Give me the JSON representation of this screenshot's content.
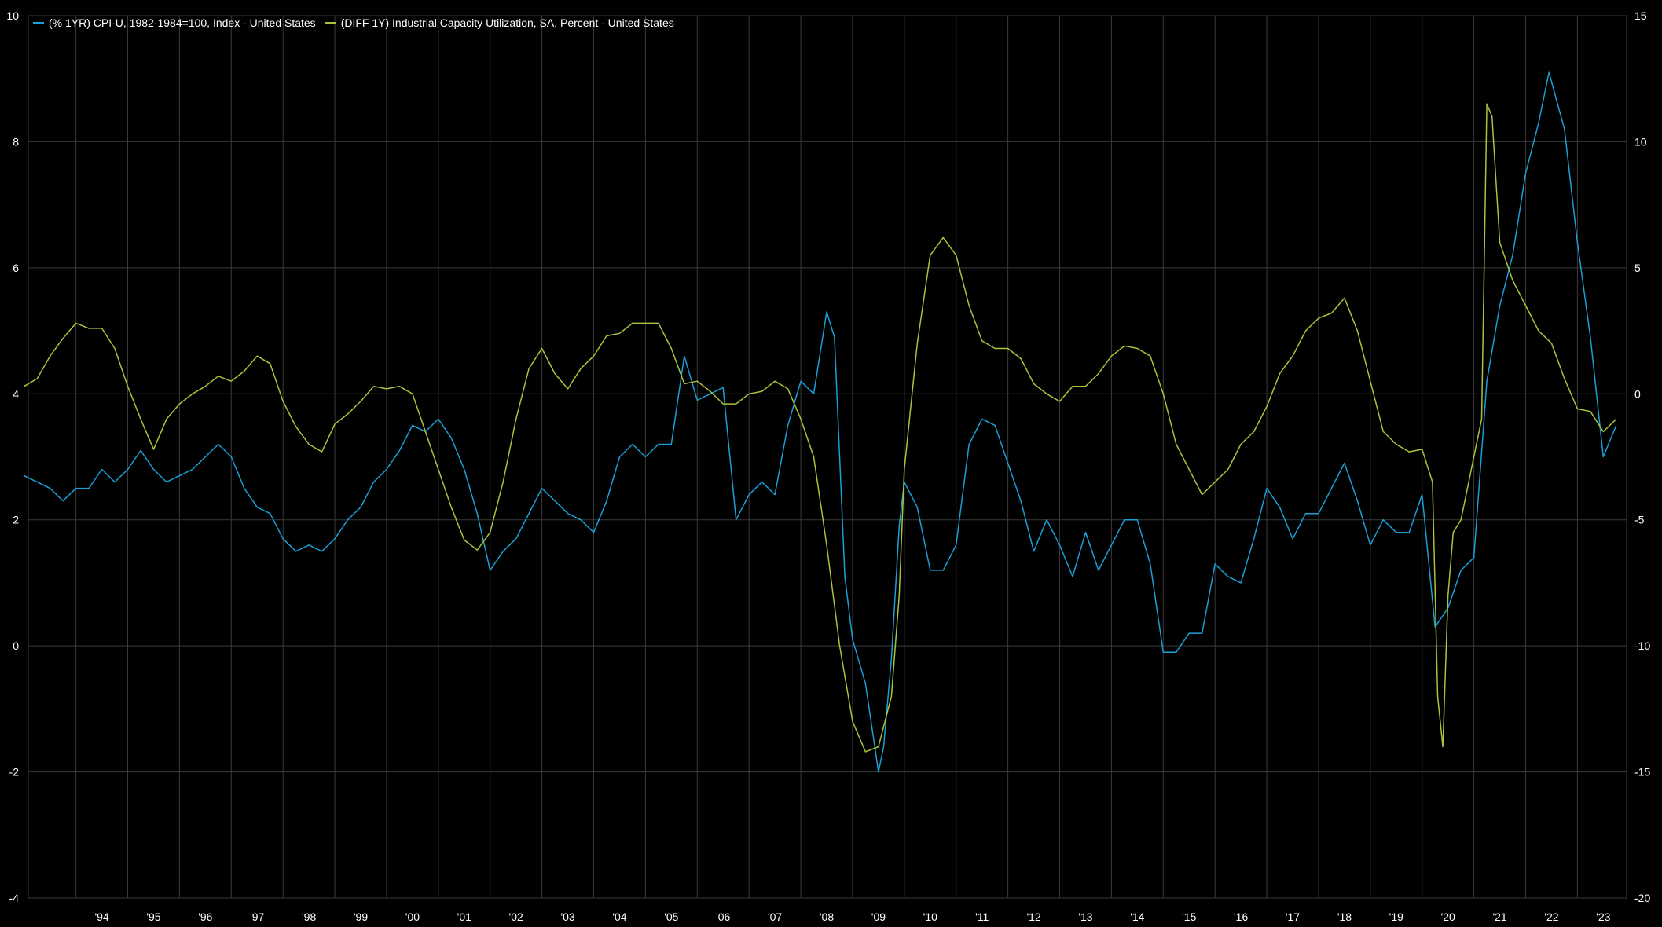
{
  "chart_data": {
    "type": "line",
    "title": "",
    "xlabel": "",
    "ylabel": "",
    "x_range": [
      1993.08,
      2023.95
    ],
    "y_left_range": [
      -4,
      10
    ],
    "y_right_range": [
      -20,
      15
    ],
    "grid": true,
    "legend_position": "top-left",
    "background": "#000000",
    "grid_color": "#3a3a3a",
    "x_ticks": [
      {
        "label": "'94",
        "value": 1994.5
      },
      {
        "label": "'95",
        "value": 1995.5
      },
      {
        "label": "'96",
        "value": 1996.5
      },
      {
        "label": "'97",
        "value": 1997.5
      },
      {
        "label": "'98",
        "value": 1998.5
      },
      {
        "label": "'99",
        "value": 1999.5
      },
      {
        "label": "'00",
        "value": 2000.5
      },
      {
        "label": "'01",
        "value": 2001.5
      },
      {
        "label": "'02",
        "value": 2002.5
      },
      {
        "label": "'03",
        "value": 2003.5
      },
      {
        "label": "'04",
        "value": 2004.5
      },
      {
        "label": "'05",
        "value": 2005.5
      },
      {
        "label": "'06",
        "value": 2006.5
      },
      {
        "label": "'07",
        "value": 2007.5
      },
      {
        "label": "'08",
        "value": 2008.5
      },
      {
        "label": "'09",
        "value": 2009.5
      },
      {
        "label": "'10",
        "value": 2010.5
      },
      {
        "label": "'11",
        "value": 2011.5
      },
      {
        "label": "'12",
        "value": 2012.5
      },
      {
        "label": "'13",
        "value": 2013.5
      },
      {
        "label": "'14",
        "value": 2014.5
      },
      {
        "label": "'15",
        "value": 2015.5
      },
      {
        "label": "'16",
        "value": 2016.5
      },
      {
        "label": "'17",
        "value": 2017.5
      },
      {
        "label": "'18",
        "value": 2018.5
      },
      {
        "label": "'19",
        "value": 2019.5
      },
      {
        "label": "'20",
        "value": 2020.5
      },
      {
        "label": "'21",
        "value": 2021.5
      },
      {
        "label": "'22",
        "value": 2022.5
      },
      {
        "label": "'23",
        "value": 2023.5
      }
    ],
    "y_left_ticks": [
      {
        "label": "10",
        "value": 10
      },
      {
        "label": "8",
        "value": 8
      },
      {
        "label": "6",
        "value": 6
      },
      {
        "label": "4",
        "value": 4
      },
      {
        "label": "2",
        "value": 2
      },
      {
        "label": "0",
        "value": 0
      },
      {
        "label": "-2",
        "value": -2
      },
      {
        "label": "-4",
        "value": -4
      }
    ],
    "y_right_ticks": [
      {
        "label": "15",
        "value": 15
      },
      {
        "label": "10",
        "value": 10
      },
      {
        "label": "5",
        "value": 5
      },
      {
        "label": "0",
        "value": 0
      },
      {
        "label": "-5",
        "value": -5
      },
      {
        "label": "-10",
        "value": -10
      },
      {
        "label": "-15",
        "value": -15
      },
      {
        "label": "-20",
        "value": -20
      }
    ],
    "series": [
      {
        "name": "(% 1YR) CPI-U, 1982-1984=100, Index - United States",
        "axis": "left",
        "color": "#1a9fd8",
        "points": [
          [
            1993.0,
            2.7
          ],
          [
            1993.25,
            2.6
          ],
          [
            1993.5,
            2.5
          ],
          [
            1993.75,
            2.3
          ],
          [
            1994.0,
            2.5
          ],
          [
            1994.25,
            2.5
          ],
          [
            1994.5,
            2.8
          ],
          [
            1994.75,
            2.6
          ],
          [
            1995.0,
            2.8
          ],
          [
            1995.25,
            3.1
          ],
          [
            1995.5,
            2.8
          ],
          [
            1995.75,
            2.6
          ],
          [
            1996.0,
            2.7
          ],
          [
            1996.25,
            2.8
          ],
          [
            1996.5,
            3.0
          ],
          [
            1996.75,
            3.2
          ],
          [
            1997.0,
            3.0
          ],
          [
            1997.25,
            2.5
          ],
          [
            1997.5,
            2.2
          ],
          [
            1997.75,
            2.1
          ],
          [
            1998.0,
            1.7
          ],
          [
            1998.25,
            1.5
          ],
          [
            1998.5,
            1.6
          ],
          [
            1998.75,
            1.5
          ],
          [
            1999.0,
            1.7
          ],
          [
            1999.25,
            2.0
          ],
          [
            1999.5,
            2.2
          ],
          [
            1999.75,
            2.6
          ],
          [
            2000.0,
            2.8
          ],
          [
            2000.25,
            3.1
          ],
          [
            2000.5,
            3.5
          ],
          [
            2000.75,
            3.4
          ],
          [
            2001.0,
            3.6
          ],
          [
            2001.25,
            3.3
          ],
          [
            2001.5,
            2.8
          ],
          [
            2001.75,
            2.1
          ],
          [
            2002.0,
            1.2
          ],
          [
            2002.25,
            1.5
          ],
          [
            2002.5,
            1.7
          ],
          [
            2002.75,
            2.1
          ],
          [
            2003.0,
            2.5
          ],
          [
            2003.25,
            2.3
          ],
          [
            2003.5,
            2.1
          ],
          [
            2003.75,
            2.0
          ],
          [
            2004.0,
            1.8
          ],
          [
            2004.25,
            2.3
          ],
          [
            2004.5,
            3.0
          ],
          [
            2004.75,
            3.2
          ],
          [
            2005.0,
            3.0
          ],
          [
            2005.25,
            3.2
          ],
          [
            2005.5,
            3.2
          ],
          [
            2005.75,
            4.6
          ],
          [
            2006.0,
            3.9
          ],
          [
            2006.25,
            4.0
          ],
          [
            2006.5,
            4.1
          ],
          [
            2006.75,
            2.0
          ],
          [
            2007.0,
            2.4
          ],
          [
            2007.25,
            2.6
          ],
          [
            2007.5,
            2.4
          ],
          [
            2007.75,
            3.5
          ],
          [
            2008.0,
            4.2
          ],
          [
            2008.25,
            4.0
          ],
          [
            2008.5,
            5.3
          ],
          [
            2008.65,
            4.9
          ],
          [
            2008.85,
            1.1
          ],
          [
            2009.0,
            0.1
          ],
          [
            2009.25,
            -0.6
          ],
          [
            2009.5,
            -2.0
          ],
          [
            2009.6,
            -1.6
          ],
          [
            2009.75,
            -0.2
          ],
          [
            2009.9,
            1.9
          ],
          [
            2010.0,
            2.6
          ],
          [
            2010.25,
            2.2
          ],
          [
            2010.5,
            1.2
          ],
          [
            2010.75,
            1.2
          ],
          [
            2011.0,
            1.6
          ],
          [
            2011.25,
            3.2
          ],
          [
            2011.5,
            3.6
          ],
          [
            2011.75,
            3.5
          ],
          [
            2012.0,
            2.9
          ],
          [
            2012.25,
            2.3
          ],
          [
            2012.5,
            1.5
          ],
          [
            2012.75,
            2.0
          ],
          [
            2013.0,
            1.6
          ],
          [
            2013.25,
            1.1
          ],
          [
            2013.5,
            1.8
          ],
          [
            2013.75,
            1.2
          ],
          [
            2014.0,
            1.6
          ],
          [
            2014.25,
            2.0
          ],
          [
            2014.5,
            2.0
          ],
          [
            2014.75,
            1.3
          ],
          [
            2015.0,
            -0.1
          ],
          [
            2015.25,
            -0.1
          ],
          [
            2015.5,
            0.2
          ],
          [
            2015.75,
            0.2
          ],
          [
            2016.0,
            1.3
          ],
          [
            2016.25,
            1.1
          ],
          [
            2016.5,
            1.0
          ],
          [
            2016.75,
            1.7
          ],
          [
            2017.0,
            2.5
          ],
          [
            2017.25,
            2.2
          ],
          [
            2017.5,
            1.7
          ],
          [
            2017.75,
            2.1
          ],
          [
            2018.0,
            2.1
          ],
          [
            2018.25,
            2.5
          ],
          [
            2018.5,
            2.9
          ],
          [
            2018.75,
            2.3
          ],
          [
            2019.0,
            1.6
          ],
          [
            2019.25,
            2.0
          ],
          [
            2019.5,
            1.8
          ],
          [
            2019.75,
            1.8
          ],
          [
            2020.0,
            2.4
          ],
          [
            2020.25,
            0.3
          ],
          [
            2020.5,
            0.6
          ],
          [
            2020.75,
            1.2
          ],
          [
            2021.0,
            1.4
          ],
          [
            2021.25,
            4.2
          ],
          [
            2021.5,
            5.4
          ],
          [
            2021.75,
            6.2
          ],
          [
            2022.0,
            7.5
          ],
          [
            2022.25,
            8.3
          ],
          [
            2022.45,
            9.1
          ],
          [
            2022.75,
            8.2
          ],
          [
            2023.0,
            6.4
          ],
          [
            2023.25,
            4.9
          ],
          [
            2023.5,
            3.0
          ],
          [
            2023.75,
            3.5
          ]
        ]
      },
      {
        "name": "(DIFF 1Y) Industrial Capacity Utilization, SA, Percent - United States",
        "axis": "right",
        "color": "#a8c43a",
        "points": [
          [
            1993.0,
            0.3
          ],
          [
            1993.25,
            0.6
          ],
          [
            1993.5,
            1.5
          ],
          [
            1993.75,
            2.2
          ],
          [
            1994.0,
            2.8
          ],
          [
            1994.25,
            2.6
          ],
          [
            1994.5,
            2.6
          ],
          [
            1994.75,
            1.8
          ],
          [
            1995.0,
            0.3
          ],
          [
            1995.25,
            -1.0
          ],
          [
            1995.5,
            -2.2
          ],
          [
            1995.75,
            -1.0
          ],
          [
            1996.0,
            -0.4
          ],
          [
            1996.25,
            0.0
          ],
          [
            1996.5,
            0.3
          ],
          [
            1996.75,
            0.7
          ],
          [
            1997.0,
            0.5
          ],
          [
            1997.25,
            0.9
          ],
          [
            1997.5,
            1.5
          ],
          [
            1997.75,
            1.2
          ],
          [
            1998.0,
            -0.3
          ],
          [
            1998.25,
            -1.3
          ],
          [
            1998.5,
            -2.0
          ],
          [
            1998.75,
            -2.3
          ],
          [
            1999.0,
            -1.2
          ],
          [
            1999.25,
            -0.8
          ],
          [
            1999.5,
            -0.3
          ],
          [
            1999.75,
            0.3
          ],
          [
            2000.0,
            0.2
          ],
          [
            2000.25,
            0.3
          ],
          [
            2000.5,
            0.0
          ],
          [
            2000.75,
            -1.5
          ],
          [
            2001.0,
            -3.0
          ],
          [
            2001.25,
            -4.5
          ],
          [
            2001.5,
            -5.8
          ],
          [
            2001.75,
            -6.2
          ],
          [
            2002.0,
            -5.5
          ],
          [
            2002.25,
            -3.5
          ],
          [
            2002.5,
            -1.0
          ],
          [
            2002.75,
            1.0
          ],
          [
            2003.0,
            1.8
          ],
          [
            2003.25,
            0.8
          ],
          [
            2003.5,
            0.2
          ],
          [
            2003.75,
            1.0
          ],
          [
            2004.0,
            1.5
          ],
          [
            2004.25,
            2.3
          ],
          [
            2004.5,
            2.4
          ],
          [
            2004.75,
            2.8
          ],
          [
            2005.0,
            2.8
          ],
          [
            2005.25,
            2.8
          ],
          [
            2005.5,
            1.8
          ],
          [
            2005.75,
            0.4
          ],
          [
            2006.0,
            0.5
          ],
          [
            2006.25,
            0.1
          ],
          [
            2006.5,
            -0.4
          ],
          [
            2006.75,
            -0.4
          ],
          [
            2007.0,
            0.0
          ],
          [
            2007.25,
            0.1
          ],
          [
            2007.5,
            0.5
          ],
          [
            2007.75,
            0.2
          ],
          [
            2008.0,
            -1.0
          ],
          [
            2008.25,
            -2.5
          ],
          [
            2008.5,
            -6.0
          ],
          [
            2008.75,
            -10.0
          ],
          [
            2009.0,
            -13.0
          ],
          [
            2009.25,
            -14.2
          ],
          [
            2009.5,
            -14.0
          ],
          [
            2009.75,
            -12.0
          ],
          [
            2009.9,
            -8.0
          ],
          [
            2010.0,
            -3.0
          ],
          [
            2010.25,
            2.0
          ],
          [
            2010.5,
            5.5
          ],
          [
            2010.75,
            6.2
          ],
          [
            2011.0,
            5.5
          ],
          [
            2011.25,
            3.5
          ],
          [
            2011.5,
            2.1
          ],
          [
            2011.75,
            1.8
          ],
          [
            2012.0,
            1.8
          ],
          [
            2012.25,
            1.4
          ],
          [
            2012.5,
            0.4
          ],
          [
            2012.75,
            0.0
          ],
          [
            2013.0,
            -0.3
          ],
          [
            2013.25,
            0.3
          ],
          [
            2013.5,
            0.3
          ],
          [
            2013.75,
            0.8
          ],
          [
            2014.0,
            1.5
          ],
          [
            2014.25,
            1.9
          ],
          [
            2014.5,
            1.8
          ],
          [
            2014.75,
            1.5
          ],
          [
            2015.0,
            0.0
          ],
          [
            2015.25,
            -2.0
          ],
          [
            2015.5,
            -3.0
          ],
          [
            2015.75,
            -4.0
          ],
          [
            2016.0,
            -3.5
          ],
          [
            2016.25,
            -3.0
          ],
          [
            2016.5,
            -2.0
          ],
          [
            2016.75,
            -1.5
          ],
          [
            2017.0,
            -0.5
          ],
          [
            2017.25,
            0.8
          ],
          [
            2017.5,
            1.5
          ],
          [
            2017.75,
            2.5
          ],
          [
            2018.0,
            3.0
          ],
          [
            2018.25,
            3.2
          ],
          [
            2018.5,
            3.8
          ],
          [
            2018.75,
            2.5
          ],
          [
            2019.0,
            0.5
          ],
          [
            2019.25,
            -1.5
          ],
          [
            2019.5,
            -2.0
          ],
          [
            2019.75,
            -2.3
          ],
          [
            2020.0,
            -2.2
          ],
          [
            2020.2,
            -3.5
          ],
          [
            2020.3,
            -12.0
          ],
          [
            2020.4,
            -14.0
          ],
          [
            2020.5,
            -8.0
          ],
          [
            2020.6,
            -5.5
          ],
          [
            2020.75,
            -5.0
          ],
          [
            2021.0,
            -2.5
          ],
          [
            2021.15,
            -1.0
          ],
          [
            2021.25,
            11.5
          ],
          [
            2021.35,
            11.0
          ],
          [
            2021.5,
            6.0
          ],
          [
            2021.75,
            4.5
          ],
          [
            2022.0,
            3.5
          ],
          [
            2022.25,
            2.5
          ],
          [
            2022.5,
            2.0
          ],
          [
            2022.75,
            0.6
          ],
          [
            2023.0,
            -0.6
          ],
          [
            2023.25,
            -0.7
          ],
          [
            2023.5,
            -1.5
          ],
          [
            2023.75,
            -1.0
          ]
        ]
      }
    ]
  }
}
